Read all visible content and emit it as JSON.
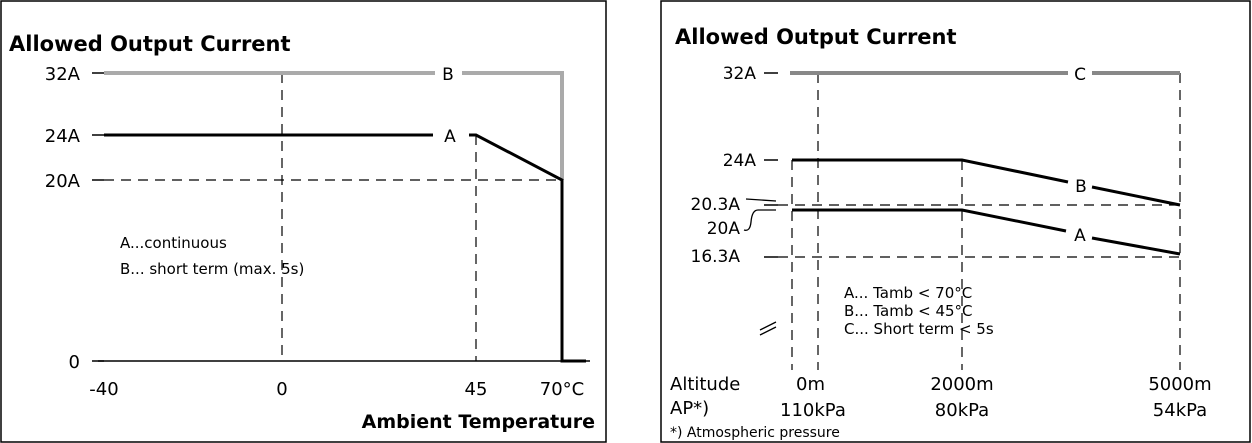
{
  "chart_data": [
    {
      "type": "line",
      "title": "Allowed Output Current",
      "xlabel": "Ambient Temperature",
      "ylabel": "",
      "x_tick_labels": [
        "-40",
        "0",
        "45",
        "70°C"
      ],
      "y_tick_labels": [
        "0",
        "20A",
        "24A",
        "32A"
      ],
      "x_tick_values": [
        -40,
        0,
        45,
        70
      ],
      "y_tick_values": [
        0,
        20,
        24,
        32
      ],
      "xlim": [
        -40,
        70
      ],
      "ylim": [
        0,
        32
      ],
      "series": [
        {
          "name": "A",
          "x": [
            -40,
            45,
            70,
            70
          ],
          "y": [
            24,
            24,
            20,
            0
          ],
          "color": "#000000"
        },
        {
          "name": "B",
          "x": [
            -40,
            70,
            70
          ],
          "y": [
            32,
            32,
            20
          ],
          "color": "#aaaaaa"
        }
      ],
      "legend": [
        "A...continuous",
        "B... short term (max. 5s)"
      ]
    },
    {
      "type": "line",
      "title": "Allowed Output Current",
      "x_row_label": "Altitude",
      "x_row2_label": "AP*)",
      "x_tick_labels": [
        "0m",
        "2000m",
        "5000m"
      ],
      "x_tick_values": [
        0,
        2000,
        5000
      ],
      "x2_tick_labels": [
        "110kPa",
        "80kPa",
        "54kPa"
      ],
      "y_tick_labels": [
        "16.3A",
        "20A",
        "20.3A",
        "24A",
        "32A"
      ],
      "y_tick_values": [
        16.3,
        20,
        20.3,
        24,
        32
      ],
      "xlim": [
        0,
        5000
      ],
      "ylim": [
        16.3,
        32
      ],
      "series": [
        {
          "name": "A",
          "x": [
            0,
            2000,
            5000
          ],
          "y": [
            20,
            20,
            16.3
          ],
          "color": "#000000"
        },
        {
          "name": "B",
          "x": [
            0,
            2000,
            5000
          ],
          "y": [
            24,
            24,
            20.3
          ],
          "color": "#000000"
        },
        {
          "name": "C",
          "x": [
            0,
            5000
          ],
          "y": [
            32,
            32
          ],
          "color": "#888888"
        }
      ],
      "legend": [
        "A... Tamb < 70°C",
        "B... Tamb < 45°C",
        "C... Short term < 5s"
      ],
      "footnote": "*) Atmospheric pressure"
    }
  ]
}
